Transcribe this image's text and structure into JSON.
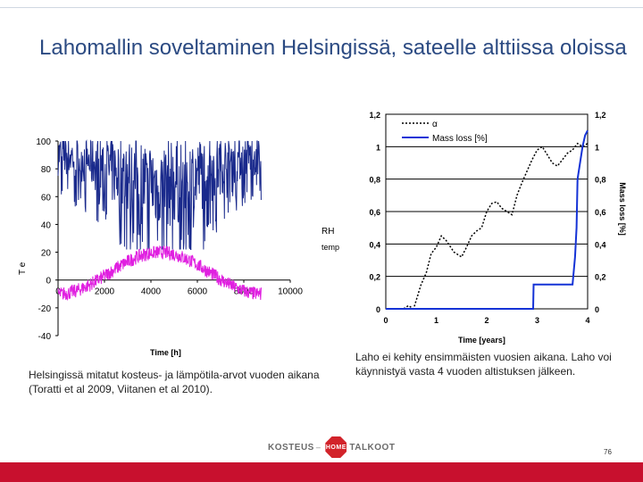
{
  "title": "Lahomallin soveltaminen Helsingissä, sateelle alttiissa oloissa",
  "chart_data": [
    {
      "type": "line",
      "ylabel": "T e",
      "xlabel": "Time [h]",
      "ylim": [
        -40,
        100
      ],
      "xlim": [
        0,
        10000
      ],
      "yticks": [
        "100",
        "80",
        "60",
        "40",
        "20",
        "0",
        "-20",
        "-40"
      ],
      "ytick_values": [
        100,
        80,
        60,
        40,
        20,
        0,
        -20,
        -40
      ],
      "xticks": [
        "0",
        "2000",
        "4000",
        "6000",
        "8000",
        "10000"
      ],
      "xtick_values": [
        0,
        2000,
        4000,
        6000,
        8000,
        10000
      ],
      "series": [
        {
          "name": "RH",
          "color": "#1a2a8c",
          "range": "approx. 25–100 %, fluctuating hourly over 0–8760 h"
        },
        {
          "name": "temp",
          "color": "#e020e0",
          "range": "approx. -20 °C in winter to 24 °C in summer, over 0–8760 h"
        }
      ]
    },
    {
      "type": "line",
      "xlabel": "Time [years]",
      "ylabel_left": "α",
      "ylabel_right": "Mass loss [%]",
      "xlim": [
        0,
        4
      ],
      "ylim": [
        0,
        1.2
      ],
      "xticks": [
        "0",
        "1",
        "2",
        "3",
        "4"
      ],
      "xtick_values": [
        0,
        1,
        2,
        3,
        4
      ],
      "yticks_left": [
        "0",
        "0,2",
        "0,4",
        "0,6",
        "0,8",
        "1",
        "1,2"
      ],
      "yticks_right": [
        "0",
        "0,2",
        "0,4",
        "0,6",
        "0,8",
        "1",
        "1,2"
      ],
      "ytick_values": [
        0,
        0.2,
        0.4,
        0.6,
        0.8,
        1.0,
        1.2
      ],
      "legend": [
        "α",
        "Mass loss [%]"
      ],
      "series": [
        {
          "name": "α",
          "style": "dotted",
          "color": "#000000",
          "x": [
            0,
            0.35,
            0.45,
            0.55,
            0.7,
            0.8,
            0.9,
            1.0,
            1.1,
            1.2,
            1.35,
            1.5,
            1.6,
            1.7,
            1.8,
            1.9,
            2.0,
            2.1,
            2.2,
            2.3,
            2.4,
            2.5,
            2.6,
            2.7,
            2.8,
            2.9,
            3.0,
            3.1,
            3.2,
            3.3,
            3.4,
            3.5,
            3.6,
            3.7,
            3.8,
            3.9,
            4.0
          ],
          "values": [
            0,
            0,
            0.02,
            0.0,
            0.15,
            0.22,
            0.34,
            0.38,
            0.45,
            0.42,
            0.35,
            0.32,
            0.38,
            0.45,
            0.48,
            0.5,
            0.6,
            0.65,
            0.66,
            0.62,
            0.6,
            0.58,
            0.7,
            0.78,
            0.85,
            0.92,
            0.98,
            1.0,
            0.95,
            0.9,
            0.88,
            0.92,
            0.96,
            0.98,
            1.02,
            1.0,
            1.02
          ]
        },
        {
          "name": "Mass loss [%]",
          "style": "solid",
          "color": "#1533d6",
          "x": [
            0,
            2.92,
            2.93,
            3.0,
            3.3,
            3.5,
            3.7,
            3.75,
            3.78,
            3.8,
            3.9,
            3.95,
            4.0
          ],
          "values": [
            0,
            0,
            0.15,
            0.15,
            0.15,
            0.15,
            0.15,
            0.32,
            0.5,
            0.8,
            1.0,
            1.07,
            1.1
          ]
        }
      ]
    }
  ],
  "caption_left": "Helsingissä mitatut kosteus- ja lämpötila-arvot vuoden aikana (Toratti et al 2009, Viitanen et al 2010).",
  "caption_right": "Laho ei kehity ensimmäisten vuosien aikana. Laho voi käynnistyä vasta 4 vuoden altistuksen jälkeen.",
  "logo": {
    "left": "KOSTEUS",
    "amp": "–",
    "sign": "HOME",
    "right": "TALKOOT"
  },
  "page_number": "76",
  "colors": {
    "title": "#2b4a82",
    "bottom_bar": "#c8102e",
    "rh": "#1a2a8c",
    "temp": "#e020e0",
    "mass_loss": "#1533d6"
  }
}
